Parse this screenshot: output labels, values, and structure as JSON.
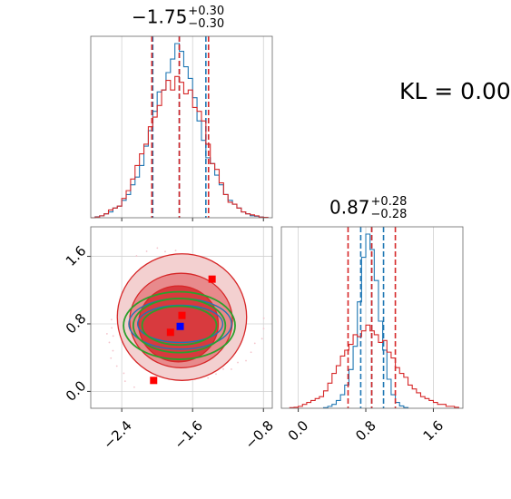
{
  "annotation": {
    "kl_text": "KL = 0.00"
  },
  "chart_data": [
    {
      "type": "histogram",
      "panel": "marginal-param-1",
      "title": {
        "value": "−1.75",
        "plus": "+0.30",
        "minus": "−0.30"
      },
      "xlim": [
        -2.75,
        -0.7
      ],
      "x_ticks": [
        -2.4,
        -1.6,
        -0.8
      ],
      "x_tick_labels": [
        "−2.4",
        "−1.6",
        "−0.8"
      ],
      "grid": true,
      "series": [
        {
          "color": "#1f77b4",
          "bins": [
            [
              -2.75,
              0
            ],
            [
              -2.7,
              0.005
            ],
            [
              -2.65,
              0.01
            ],
            [
              -2.6,
              0.02
            ],
            [
              -2.55,
              0.03
            ],
            [
              -2.5,
              0.05
            ],
            [
              -2.45,
              0.06
            ],
            [
              -2.4,
              0.09
            ],
            [
              -2.35,
              0.12
            ],
            [
              -2.3,
              0.17
            ],
            [
              -2.25,
              0.21
            ],
            [
              -2.2,
              0.27
            ],
            [
              -2.15,
              0.37
            ],
            [
              -2.1,
              0.45
            ],
            [
              -2.05,
              0.55
            ],
            [
              -2.0,
              0.65
            ],
            [
              -1.95,
              0.66
            ],
            [
              -1.9,
              0.75
            ],
            [
              -1.85,
              0.82
            ],
            [
              -1.8,
              0.9
            ],
            [
              -1.75,
              0.86
            ],
            [
              -1.7,
              0.78
            ],
            [
              -1.65,
              0.72
            ],
            [
              -1.6,
              0.62
            ],
            [
              -1.55,
              0.5
            ],
            [
              -1.5,
              0.4
            ],
            [
              -1.45,
              0.31
            ],
            [
              -1.4,
              0.28
            ],
            [
              -1.35,
              0.22
            ],
            [
              -1.3,
              0.17
            ],
            [
              -1.25,
              0.12
            ],
            [
              -1.2,
              0.09
            ],
            [
              -1.15,
              0.07
            ],
            [
              -1.1,
              0.05
            ],
            [
              -1.05,
              0.03
            ],
            [
              -1.0,
              0.02
            ],
            [
              -0.95,
              0.01
            ],
            [
              -0.9,
              0.008
            ],
            [
              -0.85,
              0.004
            ],
            [
              -0.8,
              0.002
            ]
          ],
          "quantiles": [
            -2.05,
            -1.75,
            -1.45
          ],
          "dash_color": "#1f77b4"
        },
        {
          "color": "#d62728",
          "bins": [
            [
              -2.75,
              0
            ],
            [
              -2.7,
              0.004
            ],
            [
              -2.65,
              0.01
            ],
            [
              -2.6,
              0.02
            ],
            [
              -2.55,
              0.04
            ],
            [
              -2.5,
              0.05
            ],
            [
              -2.45,
              0.06
            ],
            [
              -2.4,
              0.1
            ],
            [
              -2.35,
              0.14
            ],
            [
              -2.3,
              0.2
            ],
            [
              -2.25,
              0.27
            ],
            [
              -2.2,
              0.33
            ],
            [
              -2.15,
              0.38
            ],
            [
              -2.1,
              0.47
            ],
            [
              -2.05,
              0.52
            ],
            [
              -2.0,
              0.58
            ],
            [
              -1.95,
              0.66
            ],
            [
              -1.9,
              0.71
            ],
            [
              -1.85,
              0.66
            ],
            [
              -1.8,
              0.73
            ],
            [
              -1.75,
              0.7
            ],
            [
              -1.7,
              0.64
            ],
            [
              -1.65,
              0.66
            ],
            [
              -1.6,
              0.57
            ],
            [
              -1.55,
              0.55
            ],
            [
              -1.5,
              0.5
            ],
            [
              -1.45,
              0.38
            ],
            [
              -1.4,
              0.28
            ],
            [
              -1.35,
              0.25
            ],
            [
              -1.3,
              0.18
            ],
            [
              -1.25,
              0.12
            ],
            [
              -1.2,
              0.08
            ],
            [
              -1.15,
              0.07
            ],
            [
              -1.1,
              0.05
            ],
            [
              -1.05,
              0.03
            ],
            [
              -1.0,
              0.02
            ],
            [
              -0.95,
              0.015
            ],
            [
              -0.9,
              0.01
            ],
            [
              -0.85,
              0.003
            ],
            [
              -0.8,
              0.002
            ]
          ],
          "quantiles": [
            -2.06,
            -1.75,
            -1.42
          ],
          "dash_color": "#d62728"
        }
      ]
    },
    {
      "type": "histogram",
      "panel": "marginal-param-2",
      "title": {
        "value": "0.87",
        "plus": "+0.28",
        "minus": "−0.28"
      },
      "xlim": [
        -0.2,
        1.95
      ],
      "x_ticks": [
        0.0,
        0.8,
        1.6
      ],
      "x_tick_labels": [
        "0.0",
        "0.8",
        "1.6"
      ],
      "grid": true,
      "series": [
        {
          "color": "#1f77b4",
          "bins": [
            [
              0.3,
              0.003
            ],
            [
              0.35,
              0.01
            ],
            [
              0.4,
              0.02
            ],
            [
              0.45,
              0.04
            ],
            [
              0.5,
              0.07
            ],
            [
              0.55,
              0.12
            ],
            [
              0.6,
              0.2
            ],
            [
              0.65,
              0.32
            ],
            [
              0.7,
              0.55
            ],
            [
              0.75,
              0.78
            ],
            [
              0.8,
              0.9
            ],
            [
              0.85,
              0.82
            ],
            [
              0.9,
              0.66
            ],
            [
              0.95,
              0.45
            ],
            [
              1.0,
              0.3
            ],
            [
              1.05,
              0.15
            ],
            [
              1.1,
              0.07
            ],
            [
              1.15,
              0.03
            ],
            [
              1.2,
              0.012
            ],
            [
              1.25,
              0.004
            ]
          ],
          "quantiles": [
            0.74,
            0.87,
            1.01
          ],
          "dash_color": "#1f77b4"
        },
        {
          "color": "#d62728",
          "bins": [
            [
              -0.1,
              0.003
            ],
            [
              -0.05,
              0.005
            ],
            [
              0.0,
              0.01
            ],
            [
              0.05,
              0.02
            ],
            [
              0.1,
              0.03
            ],
            [
              0.15,
              0.04
            ],
            [
              0.2,
              0.05
            ],
            [
              0.25,
              0.06
            ],
            [
              0.3,
              0.09
            ],
            [
              0.35,
              0.13
            ],
            [
              0.4,
              0.18
            ],
            [
              0.45,
              0.22
            ],
            [
              0.5,
              0.27
            ],
            [
              0.55,
              0.3
            ],
            [
              0.6,
              0.33
            ],
            [
              0.65,
              0.38
            ],
            [
              0.7,
              0.37
            ],
            [
              0.75,
              0.4
            ],
            [
              0.8,
              0.43
            ],
            [
              0.85,
              0.4
            ],
            [
              0.9,
              0.38
            ],
            [
              0.95,
              0.34
            ],
            [
              1.0,
              0.35
            ],
            [
              1.05,
              0.29
            ],
            [
              1.1,
              0.26
            ],
            [
              1.15,
              0.21
            ],
            [
              1.2,
              0.18
            ],
            [
              1.25,
              0.16
            ],
            [
              1.3,
              0.12
            ],
            [
              1.35,
              0.1
            ],
            [
              1.4,
              0.08
            ],
            [
              1.45,
              0.06
            ],
            [
              1.5,
              0.05
            ],
            [
              1.55,
              0.04
            ],
            [
              1.6,
              0.03
            ],
            [
              1.65,
              0.02
            ],
            [
              1.7,
              0.02
            ],
            [
              1.75,
              0.01
            ],
            [
              1.8,
              0.01
            ],
            [
              1.85,
              0.005
            ]
          ],
          "quantiles": [
            0.59,
            0.87,
            1.15
          ],
          "dash_color": "#d62728"
        }
      ]
    },
    {
      "type": "contour",
      "panel": "joint-param-1-param-2",
      "xlim": [
        -2.75,
        -0.7
      ],
      "ylim": [
        -0.2,
        1.95
      ],
      "x_ticks": [
        -2.4,
        -1.6,
        -0.8
      ],
      "x_tick_labels": [
        "−2.4",
        "−1.6",
        "−0.8"
      ],
      "y_ticks": [
        0.0,
        0.8,
        1.6
      ],
      "y_tick_labels": [
        "0.0",
        "0.8",
        "1.6"
      ],
      "grid": true,
      "red_filled_levels": [
        {
          "cx": -1.72,
          "cy": 0.88,
          "rx": 0.73,
          "ry": 0.75,
          "fill": "#f3d0d0"
        },
        {
          "cx": -1.73,
          "cy": 0.84,
          "rx": 0.58,
          "ry": 0.56,
          "fill": "#e88a8c"
        },
        {
          "cx": -1.76,
          "cy": 0.8,
          "rx": 0.45,
          "ry": 0.45,
          "fill": "#d83a3e"
        }
      ],
      "blue_ellipses": [
        {
          "cx": -1.74,
          "cy": 0.8,
          "rx": 0.48,
          "ry": 0.22
        },
        {
          "cx": -1.74,
          "cy": 0.8,
          "rx": 0.58,
          "ry": 0.3
        }
      ],
      "green_ellipses": [
        {
          "cx": -1.75,
          "cy": 0.78,
          "rx": 0.42,
          "ry": 0.23
        },
        {
          "cx": -1.75,
          "cy": 0.78,
          "rx": 0.52,
          "ry": 0.32
        },
        {
          "cx": -1.75,
          "cy": 0.78,
          "rx": 0.63,
          "ry": 0.4
        }
      ],
      "red_markers": [
        {
          "x": -1.38,
          "y": 1.33
        },
        {
          "x": -1.72,
          "y": 0.9
        },
        {
          "x": -1.85,
          "y": 0.7
        },
        {
          "x": -2.04,
          "y": 0.13
        }
      ],
      "blue_markers": [
        {
          "x": -1.74,
          "y": 0.77
        }
      ],
      "colors": {
        "red": "#d62728",
        "blue": "#1f77b4",
        "green": "#2ca02c",
        "marker_blue": "#0000ff",
        "marker_red": "#ff0000"
      }
    }
  ]
}
